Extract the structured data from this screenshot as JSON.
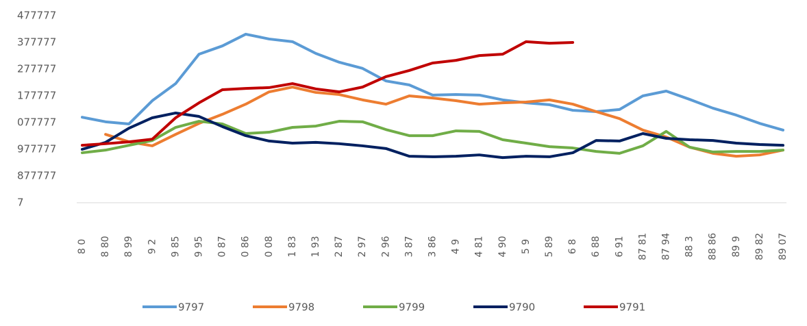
{
  "chart_data": {
    "type": "line",
    "categories": [
      "8 0",
      "8 80",
      "8 99",
      "9 2",
      "9 85",
      "9 95",
      "0 87",
      "0 86",
      "0 08",
      "1 83",
      "1 93",
      "2 87",
      "2 97",
      "2 96",
      "3 87",
      "3 86",
      "4 9",
      "4 81",
      "4 90",
      "5 9",
      "5 89",
      "6 8",
      "6 88",
      "6 91",
      "87 81",
      "87 94",
      "88 3",
      "88 86",
      "89 9",
      "89 82",
      "89 07"
    ],
    "ylim": [
      0,
      7
    ],
    "yticks": [
      {
        "value": 0,
        "label": "7"
      },
      {
        "value": 1,
        "label": "877777"
      },
      {
        "value": 2,
        "label": "977777"
      },
      {
        "value": 3,
        "label": "077777"
      },
      {
        "value": 4,
        "label": "177777"
      },
      {
        "value": 5,
        "label": "277777"
      },
      {
        "value": 6,
        "label": "377777"
      },
      {
        "value": 7,
        "label": "477777"
      }
    ],
    "legend": "bottom",
    "series": [
      {
        "name": "9797",
        "color": "#5b9bd5",
        "values": [
          3.2,
          3.03,
          2.95,
          3.82,
          4.46,
          5.56,
          5.87,
          6.31,
          6.13,
          6.03,
          5.59,
          5.26,
          5.03,
          4.56,
          4.41,
          4.03,
          4.05,
          4.03,
          3.85,
          3.74,
          3.67,
          3.46,
          3.41,
          3.49,
          4.0,
          4.18,
          3.87,
          3.54,
          3.28,
          2.97,
          2.72
        ]
      },
      {
        "name": "9798",
        "color": "#ed7d31",
        "values": [
          null,
          2.56,
          2.28,
          2.13,
          2.56,
          2.97,
          3.31,
          3.69,
          4.15,
          4.33,
          4.13,
          4.05,
          3.85,
          3.69,
          4.0,
          3.92,
          3.82,
          3.69,
          3.74,
          3.77,
          3.85,
          3.69,
          3.41,
          3.15,
          2.72,
          2.46,
          2.08,
          1.85,
          1.74,
          1.79,
          1.97
        ]
      },
      {
        "name": "9799",
        "color": "#70ad47",
        "values": [
          1.87,
          1.97,
          2.15,
          2.33,
          2.82,
          3.05,
          2.95,
          2.59,
          2.64,
          2.82,
          2.87,
          3.05,
          3.03,
          2.74,
          2.51,
          2.51,
          2.69,
          2.67,
          2.36,
          2.23,
          2.1,
          2.05,
          1.92,
          1.85,
          2.13,
          2.67,
          2.08,
          1.9,
          1.92,
          1.92,
          1.97
        ]
      },
      {
        "name": "9790",
        "color": "#002060",
        "values": [
          2.0,
          2.26,
          2.79,
          3.18,
          3.36,
          3.23,
          2.85,
          2.51,
          2.31,
          2.23,
          2.26,
          2.21,
          2.13,
          2.03,
          1.74,
          1.72,
          1.74,
          1.79,
          1.69,
          1.74,
          1.72,
          1.87,
          2.33,
          2.31,
          2.59,
          2.41,
          2.36,
          2.33,
          2.23,
          2.18,
          2.15
        ]
      },
      {
        "name": "9791",
        "color": "#c00000",
        "values": [
          2.15,
          2.21,
          2.28,
          2.38,
          3.18,
          3.74,
          4.23,
          4.28,
          4.31,
          4.46,
          4.26,
          4.15,
          4.33,
          4.72,
          4.95,
          5.23,
          5.33,
          5.51,
          5.56,
          6.03,
          5.97,
          6.0,
          null,
          null,
          null,
          null,
          null,
          null,
          null,
          null,
          null
        ]
      }
    ]
  }
}
